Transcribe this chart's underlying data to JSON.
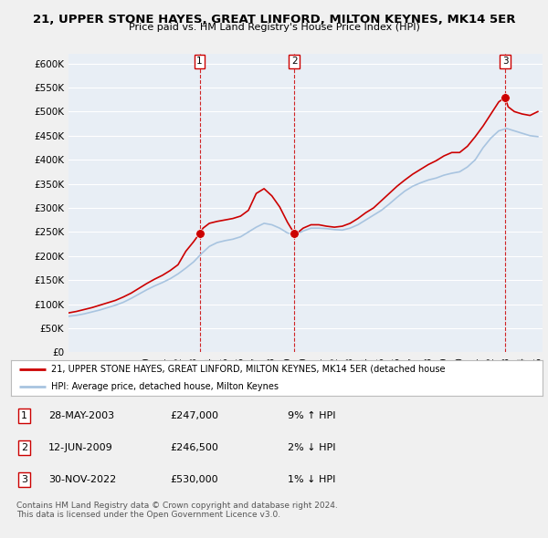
{
  "title": "21, UPPER STONE HAYES, GREAT LINFORD, MILTON KEYNES, MK14 5ER",
  "subtitle": "Price paid vs. HM Land Registry's House Price Index (HPI)",
  "ylim": [
    0,
    620000
  ],
  "yticks": [
    0,
    50000,
    100000,
    150000,
    200000,
    250000,
    300000,
    350000,
    400000,
    450000,
    500000,
    550000,
    600000
  ],
  "ytick_labels": [
    "£0",
    "£50K",
    "£100K",
    "£150K",
    "£200K",
    "£250K",
    "£300K",
    "£350K",
    "£400K",
    "£450K",
    "£500K",
    "£550K",
    "£600K"
  ],
  "background_color": "#f0f0f0",
  "plot_bg_color": "#e8eef5",
  "grid_color": "#ffffff",
  "line_color_property": "#cc0000",
  "line_color_hpi": "#a8c4e0",
  "sale_marker_color": "#cc0000",
  "sale_dashed_color": "#cc0000",
  "xlim_left": 1995,
  "xlim_right": 2025.3,
  "sales": [
    {
      "date_num": 2003.38,
      "price": 247000,
      "label": "1"
    },
    {
      "date_num": 2009.44,
      "price": 246500,
      "label": "2"
    },
    {
      "date_num": 2022.91,
      "price": 530000,
      "label": "3"
    }
  ],
  "legend_property_label": "21, UPPER STONE HAYES, GREAT LINFORD, MILTON KEYNES, MK14 5ER (detached house",
  "legend_hpi_label": "HPI: Average price, detached house, Milton Keynes",
  "table_rows": [
    {
      "num": "1",
      "date": "28-MAY-2003",
      "price": "£247,000",
      "hpi": "9% ↑ HPI"
    },
    {
      "num": "2",
      "date": "12-JUN-2009",
      "price": "£246,500",
      "hpi": "2% ↓ HPI"
    },
    {
      "num": "3",
      "date": "30-NOV-2022",
      "price": "£530,000",
      "hpi": "1% ↓ HPI"
    }
  ],
  "footer": "Contains HM Land Registry data © Crown copyright and database right 2024.\nThis data is licensed under the Open Government Licence v3.0."
}
